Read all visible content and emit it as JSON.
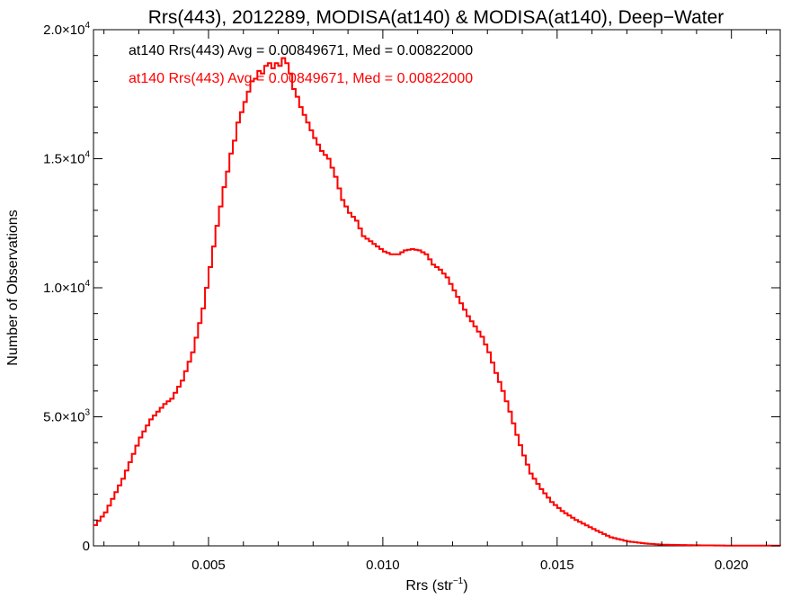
{
  "chart_data": {
    "type": "line",
    "title": "Rrs(443), 2012289, MODISA(at140) & MODISA(at140), Deep−Water",
    "xlabel": "Rrs (str",
    "xlabel_sup": "−1",
    "xlabel_close": ")",
    "ylabel": "Number of Observations",
    "xlim": [
      0.0017,
      0.0214
    ],
    "ylim": [
      0,
      20000
    ],
    "x_ticks": [
      0.005,
      0.01,
      0.015,
      0.02
    ],
    "x_tick_labels": [
      "0.005",
      "0.010",
      "0.015",
      "0.020"
    ],
    "y_ticks": [
      0,
      5000,
      10000,
      15000,
      20000
    ],
    "y_tick_labels": [
      {
        "base": "0",
        "exp": ""
      },
      {
        "base": "5.0×10",
        "exp": "3"
      },
      {
        "base": "1.0×10",
        "exp": "4"
      },
      {
        "base": "1.5×10",
        "exp": "4"
      },
      {
        "base": "2.0×10",
        "exp": "4"
      }
    ],
    "grid": false,
    "annotations": [
      {
        "text": "at140 Rrs(443) Avg = 0.00849671, Med = 0.00822000",
        "color": "#000000"
      },
      {
        "text": "at140 Rrs(443) Avg = 0.00849671, Med = 0.00822000",
        "color": "#ff0000"
      }
    ],
    "series": [
      {
        "color": "#000000",
        "x": [
          0.0017,
          0.002,
          0.0025,
          0.003,
          0.0033,
          0.0035,
          0.0037,
          0.0039,
          0.0042,
          0.0045,
          0.0048,
          0.005,
          0.0052,
          0.0054,
          0.0055,
          0.0056,
          0.0057,
          0.0058,
          0.0059,
          0.006,
          0.0061,
          0.0062,
          0.0063,
          0.0064,
          0.0065,
          0.0066,
          0.0067,
          0.0068,
          0.0069,
          0.007,
          0.0071,
          0.0072,
          0.0073,
          0.0074,
          0.0075,
          0.0076,
          0.0077,
          0.0078,
          0.008,
          0.0082,
          0.0084,
          0.0086,
          0.0088,
          0.009,
          0.0092,
          0.0094,
          0.0096,
          0.0098,
          0.01,
          0.0102,
          0.0104,
          0.0106,
          0.0108,
          0.011,
          0.0112,
          0.0114,
          0.0116,
          0.0118,
          0.012,
          0.0122,
          0.0124,
          0.0126,
          0.0128,
          0.013,
          0.0132,
          0.0134,
          0.0136,
          0.0138,
          0.014,
          0.0142,
          0.0145,
          0.0148,
          0.0151,
          0.0155,
          0.016,
          0.0165,
          0.017,
          0.0175,
          0.018,
          0.019,
          0.02,
          0.0214
        ],
        "y": [
          800,
          1300,
          2600,
          4200,
          4900,
          5200,
          5500,
          5700,
          6400,
          7500,
          9200,
          10800,
          12400,
          13900,
          14500,
          15200,
          15700,
          16400,
          16800,
          17200,
          17600,
          18000,
          18100,
          18400,
          18300,
          18600,
          18700,
          18500,
          18700,
          18600,
          18900,
          18700,
          18300,
          17700,
          17400,
          17000,
          16700,
          16400,
          15800,
          15300,
          15000,
          14300,
          13400,
          12900,
          12600,
          12000,
          11800,
          11600,
          11400,
          11300,
          11300,
          11450,
          11500,
          11450,
          11300,
          10900,
          10700,
          10400,
          9900,
          9400,
          8900,
          8500,
          8100,
          7500,
          6700,
          6000,
          5200,
          4300,
          3500,
          2800,
          2200,
          1700,
          1350,
          1000,
          650,
          330,
          170,
          90,
          45,
          20,
          10,
          5
        ]
      },
      {
        "color": "#ff0000",
        "x": [
          0.0017,
          0.002,
          0.0025,
          0.003,
          0.0033,
          0.0035,
          0.0037,
          0.0039,
          0.0042,
          0.0045,
          0.0048,
          0.005,
          0.0052,
          0.0054,
          0.0055,
          0.0056,
          0.0057,
          0.0058,
          0.0059,
          0.006,
          0.0061,
          0.0062,
          0.0063,
          0.0064,
          0.0065,
          0.0066,
          0.0067,
          0.0068,
          0.0069,
          0.007,
          0.0071,
          0.0072,
          0.0073,
          0.0074,
          0.0075,
          0.0076,
          0.0077,
          0.0078,
          0.008,
          0.0082,
          0.0084,
          0.0086,
          0.0088,
          0.009,
          0.0092,
          0.0094,
          0.0096,
          0.0098,
          0.01,
          0.0102,
          0.0104,
          0.0106,
          0.0108,
          0.011,
          0.0112,
          0.0114,
          0.0116,
          0.0118,
          0.012,
          0.0122,
          0.0124,
          0.0126,
          0.0128,
          0.013,
          0.0132,
          0.0134,
          0.0136,
          0.0138,
          0.014,
          0.0142,
          0.0145,
          0.0148,
          0.0151,
          0.0155,
          0.016,
          0.0165,
          0.017,
          0.0175,
          0.018,
          0.019,
          0.02,
          0.0214
        ],
        "y": [
          800,
          1300,
          2600,
          4200,
          4900,
          5200,
          5500,
          5700,
          6400,
          7500,
          9200,
          10800,
          12400,
          13900,
          14500,
          15200,
          15700,
          16400,
          16800,
          17200,
          17600,
          18000,
          18100,
          18400,
          18300,
          18600,
          18700,
          18500,
          18700,
          18600,
          18900,
          18700,
          18300,
          17700,
          17400,
          17000,
          16700,
          16400,
          15800,
          15300,
          15000,
          14300,
          13400,
          12900,
          12600,
          12000,
          11800,
          11600,
          11400,
          11300,
          11300,
          11450,
          11500,
          11450,
          11300,
          10900,
          10700,
          10400,
          9900,
          9400,
          8900,
          8500,
          8100,
          7500,
          6700,
          6000,
          5200,
          4300,
          3500,
          2800,
          2200,
          1700,
          1350,
          1000,
          650,
          330,
          170,
          90,
          45,
          20,
          10,
          5
        ]
      }
    ]
  }
}
